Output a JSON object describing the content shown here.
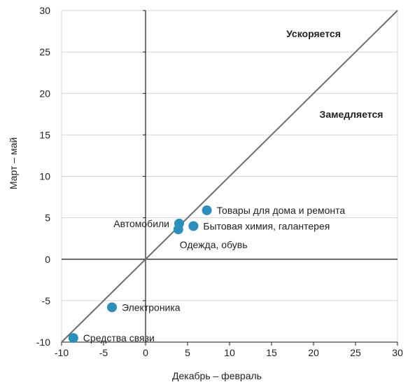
{
  "chart_data": {
    "type": "scatter",
    "xlabel": "Декабрь – февраль",
    "ylabel": "Март – май",
    "xlim": [
      -10,
      30
    ],
    "ylim": [
      -10,
      30
    ],
    "x_ticks": [
      "-10",
      "-5",
      "0",
      "5",
      "10",
      "15",
      "20",
      "25",
      "30"
    ],
    "y_ticks": [
      "-10",
      "-5",
      "0",
      "5",
      "10",
      "15",
      "20",
      "25",
      "30"
    ],
    "grid": "horizontal",
    "diagonal_line": true,
    "annotations": [
      {
        "text": "Ускоряется",
        "x": 20,
        "y": 27.2
      },
      {
        "text": "Замедляется",
        "x": 24.5,
        "y": 17.5
      }
    ],
    "points": [
      {
        "label": "Товары для дома и ремонта",
        "x": 7.3,
        "y": 5.9,
        "label_side": "right"
      },
      {
        "label": "Автомобили",
        "x": 4,
        "y": 4.3,
        "label_side": "left"
      },
      {
        "label": "Бытовая химия, галантерея",
        "x": 5.7,
        "y": 4.0,
        "label_side": "right"
      },
      {
        "label": "Одежда, обувь",
        "x": 3.9,
        "y": 3.6,
        "label_side": "below"
      },
      {
        "label": "Электроника",
        "x": -4,
        "y": -5.8,
        "label_side": "right"
      },
      {
        "label": "Средства связи",
        "x": -8.6,
        "y": -9.5,
        "label_side": "right"
      }
    ],
    "colors": {
      "point": "#2b8fbd",
      "line": "#6e6e6e",
      "grid": "#d4d4d4",
      "axis": "#1a1a1a"
    }
  }
}
